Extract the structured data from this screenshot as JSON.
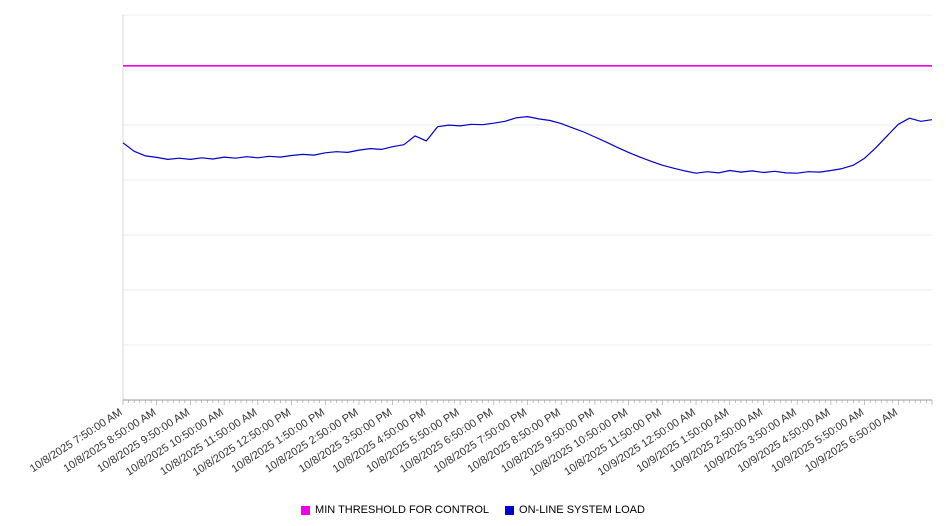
{
  "chart_data": {
    "type": "line",
    "title": "",
    "legend_position": "bottom",
    "x_axis": {
      "tick_labels": [
        "10/8/2025 7:50:00 AM",
        "10/8/2025 8:50:00 AM",
        "10/8/2025 9:50:00 AM",
        "10/8/2025 10:50:00 AM",
        "10/8/2025 11:50:00 AM",
        "10/8/2025 12:50:00 PM",
        "10/8/2025 1:50:00 PM",
        "10/8/2025 2:50:00 PM",
        "10/8/2025 3:50:00 PM",
        "10/8/2025 4:50:00 PM",
        "10/8/2025 5:50:00 PM",
        "10/8/2025 6:50:00 PM",
        "10/8/2025 7:50:00 PM",
        "10/8/2025 8:50:00 PM",
        "10/8/2025 9:50:00 PM",
        "10/8/2025 10:50:00 PM",
        "10/8/2025 11:50:00 PM",
        "10/9/2025 12:50:00 AM",
        "10/9/2025 1:50:00 AM",
        "10/9/2025 2:50:00 AM",
        "10/9/2025 3:50:00 AM",
        "10/9/2025 4:50:00 AM",
        "10/9/2025 5:50:00 AM",
        "10/9/2025 6:50:00 AM"
      ],
      "label_interval_minutes": 60,
      "minor_tick_interval_minutes": 10,
      "span_minutes": 1440,
      "label_rotation_deg": -33
    },
    "y_axis": {
      "min": 0,
      "max": 100,
      "labels_visible": false,
      "gridline_divisions": 7,
      "grid": true
    },
    "series": [
      {
        "name": "MIN THRESHOLD FOR CONTROL",
        "color": "#ee00ee",
        "kind": "constant",
        "value": 86.8
      },
      {
        "name": "ON-LINE SYSTEM LOAD",
        "color": "#0000cd",
        "kind": "line",
        "sample_interval_minutes": 20,
        "values": [
          66.8,
          64.6,
          63.4,
          63.0,
          62.5,
          62.8,
          62.5,
          62.9,
          62.6,
          63.1,
          62.8,
          63.2,
          62.9,
          63.3,
          63.1,
          63.5,
          63.8,
          63.6,
          64.2,
          64.5,
          64.3,
          64.9,
          65.3,
          65.1,
          65.8,
          66.3,
          68.6,
          67.3,
          71.0,
          71.4,
          71.2,
          71.6,
          71.5,
          71.9,
          72.4,
          73.3,
          73.6,
          73.0,
          72.6,
          71.8,
          70.7,
          69.6,
          68.3,
          67.0,
          65.6,
          64.3,
          63.1,
          62.0,
          61.0,
          60.2,
          59.5,
          58.9,
          59.3,
          59.0,
          59.6,
          59.2,
          59.5,
          59.1,
          59.4,
          59.0,
          58.9,
          59.3,
          59.2,
          59.6,
          60.1,
          61.0,
          62.8,
          65.5,
          68.6,
          71.6,
          73.2,
          72.4,
          72.8
        ]
      }
    ]
  }
}
